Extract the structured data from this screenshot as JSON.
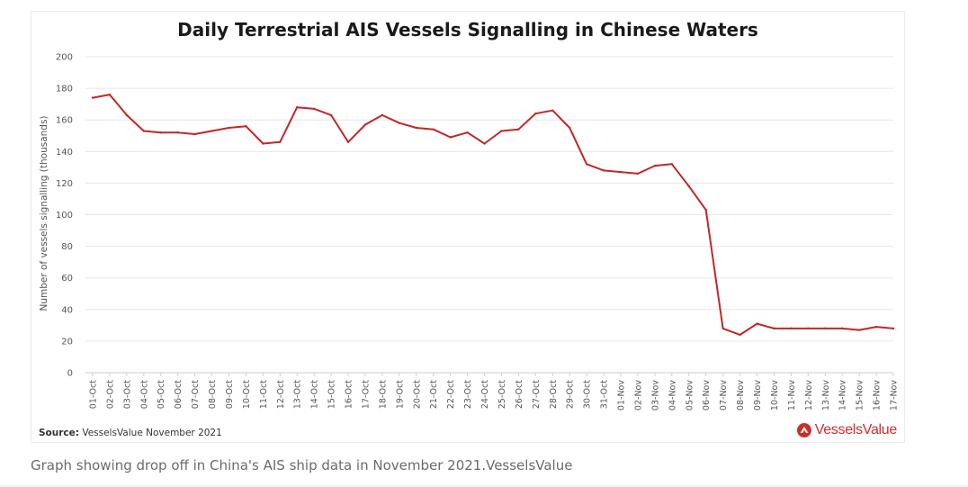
{
  "caption": "Graph showing drop off in China's AIS ship data in November 2021.VesselsValue",
  "source_label": "Source:",
  "source_text": "VesselsValue November 2021",
  "logo_text": "VesselsValue",
  "colors": {
    "line": "#c0282a",
    "grid": "#e6e6e6",
    "logo": "#c9302c"
  },
  "chart_data": {
    "type": "line",
    "title": "Daily Terrestrial AIS Vessels Signalling in Chinese Waters",
    "xlabel": "",
    "ylabel": "Number of vessels signalling (thousands)",
    "ylim": [
      0,
      200
    ],
    "yticks": [
      0,
      20,
      40,
      60,
      80,
      100,
      120,
      140,
      160,
      180,
      200
    ],
    "grid": true,
    "categories": [
      "01-Oct",
      "02-Oct",
      "03-Oct",
      "04-Oct",
      "05-Oct",
      "06-Oct",
      "07-Oct",
      "08-Oct",
      "09-Oct",
      "10-Oct",
      "11-Oct",
      "12-Oct",
      "13-Oct",
      "14-Oct",
      "15-Oct",
      "16-Oct",
      "17-Oct",
      "18-Oct",
      "19-Oct",
      "20-Oct",
      "21-Oct",
      "22-Oct",
      "23-Oct",
      "24-Oct",
      "25-Oct",
      "26-Oct",
      "27-Oct",
      "28-Oct",
      "29-Oct",
      "30-Oct",
      "31-Oct",
      "01-Nov",
      "02-Nov",
      "03-Nov",
      "04-Nov",
      "05-Nov",
      "06-Nov",
      "07-Nov",
      "08-Nov",
      "09-Nov",
      "10-Nov",
      "11-Nov",
      "12-Nov",
      "13-Nov",
      "14-Nov",
      "15-Nov",
      "16-Nov",
      "17-Nov"
    ],
    "series": [
      {
        "values": [
          174,
          176,
          163,
          153,
          152,
          152,
          151,
          153,
          155,
          156,
          145,
          146,
          168,
          167,
          163,
          146,
          157,
          163,
          158,
          155,
          154,
          149,
          152,
          145,
          153,
          154,
          164,
          166,
          155,
          132,
          128,
          127,
          126,
          131,
          132,
          118,
          103,
          28,
          24,
          31,
          28,
          28,
          28,
          28,
          28,
          27,
          29,
          28
        ]
      }
    ]
  }
}
